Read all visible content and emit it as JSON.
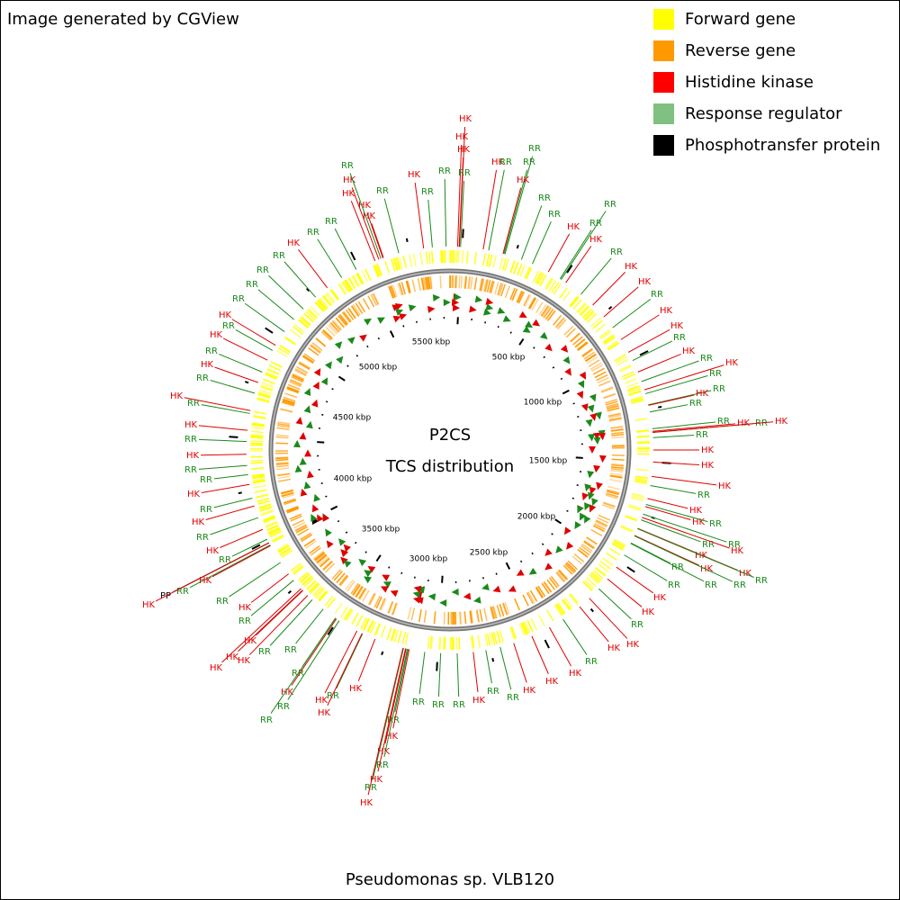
{
  "header": {
    "credit": "Image generated by CGView"
  },
  "legend": [
    {
      "label": "Forward gene",
      "color": "#ffff00"
    },
    {
      "label": "Reverse gene",
      "color": "#ff9900"
    },
    {
      "label": "Histidine kinase",
      "color": "#ff0000"
    },
    {
      "label": "Response regulator",
      "color": "#80c080"
    },
    {
      "label": "Phosphotransfer protein",
      "color": "#000000"
    }
  ],
  "feature_colors": {
    "HK": "#e00000",
    "RR": "#1a8a1a",
    "PP": "#000000"
  },
  "center": {
    "title": "P2CS",
    "subtitle": "TCS distribution"
  },
  "scale_labels": [
    "500 kbp",
    "1000 kbp",
    "1500 kbp",
    "2000 kbp",
    "2500 kbp",
    "3000 kbp",
    "3500 kbp",
    "4000 kbp",
    "4500 kbp",
    "5000 kbp",
    "5500 kbp"
  ],
  "features": [
    "HK",
    "HK",
    "HK",
    "RR",
    "RR",
    "HK",
    "RR",
    "RR",
    "RR",
    "HK",
    "RR",
    "RR",
    "HK",
    "RR",
    "RR",
    "HK",
    "RR",
    "HK",
    "HK",
    "RR",
    "HK",
    "HK",
    "RR",
    "HK",
    "RR",
    "RR",
    "HK",
    "RR",
    "HK",
    "RR",
    "RR",
    "HK",
    "RR",
    "HK",
    "RR",
    "HK",
    "HK",
    "HK",
    "RR",
    "HK",
    "HK",
    "RR",
    "RR",
    "RR",
    "HK",
    "HK",
    "RR",
    "HK",
    "HK",
    "RR",
    "RR",
    "RR",
    "RR",
    "HK",
    "HK",
    "RR",
    "HK",
    "HK",
    "RR",
    "HK",
    "HK",
    "HK",
    "RR",
    "RR",
    "HK",
    "RR",
    "RR",
    "RR",
    "RR",
    "HK",
    "HK",
    "RR",
    "HK",
    "RR",
    "HK",
    "HK",
    "RR",
    "HK",
    "HK",
    "RR",
    "HK",
    "RR",
    "RR",
    "RR",
    "HK",
    "HK",
    "HK",
    "RR",
    "HK",
    "RR",
    "HK",
    "RR",
    "RR",
    "PP",
    "HK",
    "HK",
    "RR",
    "HK",
    "RR",
    "HK",
    "RR",
    "HK",
    "RR",
    "RR",
    "HK",
    "RR",
    "HK",
    "RR",
    "HK",
    "RR",
    "HK",
    "RR",
    "HK",
    "RR",
    "HK",
    "RR",
    "RR",
    "RR",
    "RR",
    "HK",
    "RR",
    "RR",
    "HK",
    "HK",
    "RR",
    "HK",
    "HK",
    "RR",
    "HK",
    "RR"
  ],
  "footer": "Pseudomonas sp. VLB120"
}
